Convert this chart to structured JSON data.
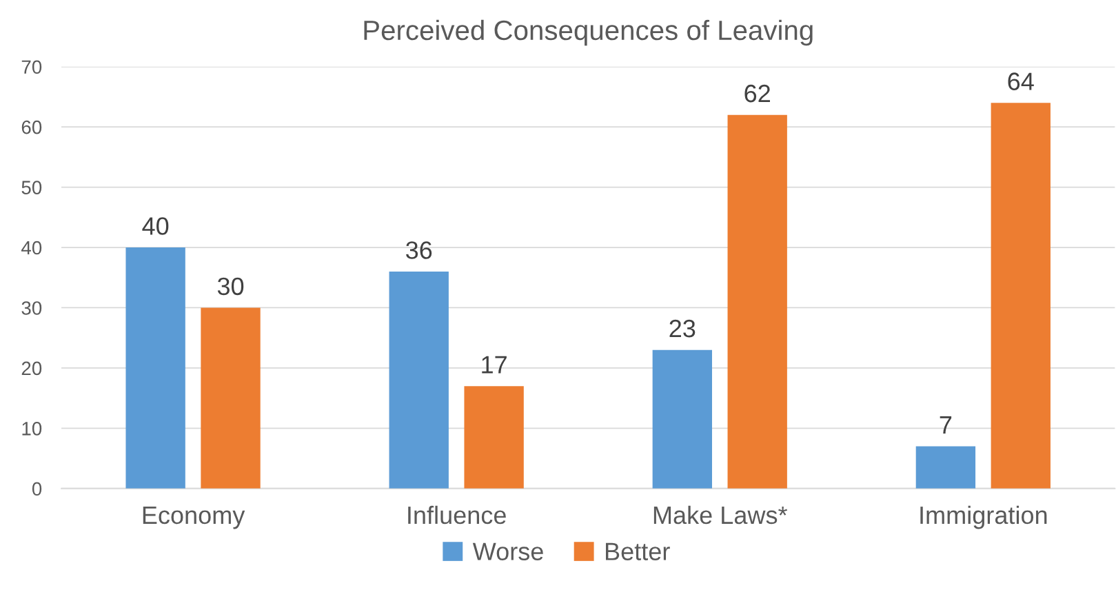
{
  "chart_data": {
    "type": "bar",
    "title": "Perceived Consequences of Leaving",
    "categories": [
      "Economy",
      "Influence",
      "Make Laws*",
      "Immigration"
    ],
    "series": [
      {
        "name": "Worse",
        "color": "#5b9bd5",
        "values": [
          40,
          36,
          23,
          7
        ]
      },
      {
        "name": "Better",
        "color": "#ed7d31",
        "values": [
          30,
          17,
          62,
          64
        ]
      }
    ],
    "ylim": [
      0,
      70
    ],
    "yticks": [
      0,
      10,
      20,
      30,
      40,
      50,
      60,
      70
    ],
    "grid": "y",
    "legend": "bottom",
    "data_labels": true
  }
}
